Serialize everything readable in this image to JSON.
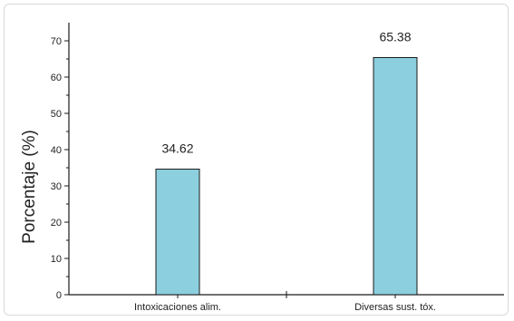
{
  "chart_data": {
    "type": "bar",
    "categories": [
      "Intoxicaciones alim.",
      "Diversas sust. tóx."
    ],
    "values": [
      34.62,
      65.38
    ],
    "data_labels": [
      "34.62",
      "65.38"
    ],
    "title": "",
    "xlabel": "",
    "ylabel": "Porcentaje (%)",
    "ylim": [
      0,
      75
    ],
    "yticks": [
      0,
      10,
      20,
      30,
      40,
      50,
      60,
      70
    ],
    "grid": false,
    "bar_color": "#8ccfdf",
    "bar_edge_color": "#1a1a1a"
  }
}
